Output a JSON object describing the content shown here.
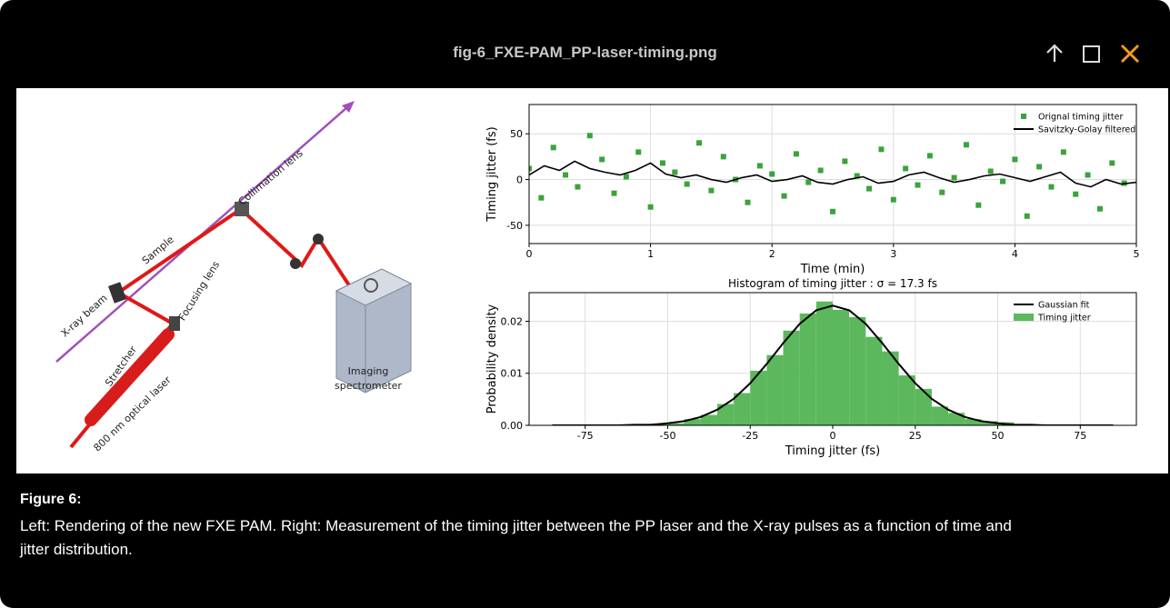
{
  "header": {
    "title": "fig-6_FXE-PAM_PP-laser-timing.png"
  },
  "diagram": {
    "labels": [
      "Collimation lens",
      "Sample",
      "Focusing lens",
      "X-ray beam",
      "Imaging",
      "spectrometer",
      "Stretcher",
      "800 nm optical laser"
    ]
  },
  "charts": [
    {
      "type": "scatter",
      "xlabel": "Time (min)",
      "ylabel": "Timing jitter (fs)",
      "xlim": [
        0,
        5
      ],
      "ylim": [
        -70,
        82
      ],
      "xticks": [
        0,
        1,
        2,
        3,
        4,
        5
      ],
      "yticks": [
        -50,
        0,
        50
      ],
      "grid": true,
      "legend": "upper-right",
      "series": [
        {
          "name": "Orignal timing jitter",
          "type": "scatter",
          "color": "#3aa33a",
          "x": [
            0,
            0.1,
            0.2,
            0.3,
            0.4,
            0.5,
            0.6,
            0.7,
            0.8,
            0.9,
            1,
            1.1,
            1.2,
            1.3,
            1.4,
            1.5,
            1.6,
            1.7,
            1.8,
            1.9,
            2,
            2.1,
            2.2,
            2.3,
            2.4,
            2.5,
            2.6,
            2.7,
            2.8,
            2.9,
            3,
            3.1,
            3.2,
            3.3,
            3.4,
            3.5,
            3.6,
            3.7,
            3.8,
            3.9,
            4,
            4.1,
            4.2,
            4.3,
            4.4,
            4.5,
            4.6,
            4.7,
            4.8,
            4.9
          ],
          "values": [
            12,
            -20,
            35,
            5,
            -8,
            48,
            22,
            -15,
            3,
            30,
            -30,
            18,
            8,
            -5,
            40,
            -12,
            25,
            0,
            -25,
            15,
            6,
            -18,
            28,
            -3,
            10,
            -35,
            20,
            4,
            -10,
            33,
            -22,
            12,
            -6,
            26,
            -14,
            2,
            38,
            -28,
            9,
            -2,
            22,
            -40,
            14,
            -8,
            30,
            -16,
            5,
            -32,
            18,
            -4
          ]
        },
        {
          "name": "Savitzky-Golay filtered",
          "type": "line",
          "color": "#000000",
          "x": [
            0,
            0.125,
            0.25,
            0.375,
            0.5,
            0.625,
            0.75,
            0.875,
            1,
            1.125,
            1.25,
            1.375,
            1.5,
            1.625,
            1.75,
            1.875,
            2,
            2.125,
            2.25,
            2.375,
            2.5,
            2.625,
            2.75,
            2.875,
            3,
            3.125,
            3.25,
            3.375,
            3.5,
            3.625,
            3.75,
            3.875,
            4,
            4.125,
            4.25,
            4.375,
            4.5,
            4.625,
            4.75,
            4.875,
            5
          ],
          "values": [
            5,
            15,
            10,
            20,
            12,
            8,
            5,
            10,
            18,
            6,
            2,
            5,
            0,
            -3,
            2,
            5,
            -2,
            0,
            4,
            -3,
            -5,
            0,
            3,
            -4,
            -2,
            5,
            8,
            2,
            -3,
            0,
            4,
            6,
            2,
            -2,
            3,
            8,
            -4,
            -8,
            0,
            -5,
            -3
          ]
        }
      ]
    },
    {
      "type": "histogram",
      "title": "Histogram of timing jitter : σ = 17.3 fs",
      "xlabel": "Timing jitter (fs)",
      "ylabel": "Probability density",
      "xlim": [
        -92,
        92
      ],
      "ylim": [
        0,
        0.0255
      ],
      "xticks": [
        -75,
        -50,
        -25,
        0,
        25,
        50,
        75
      ],
      "yticks": [
        {
          "value": 0,
          "label": "0.00"
        },
        {
          "value": 0.01,
          "label": "0.01"
        },
        {
          "value": 0.02,
          "label": "0.02"
        }
      ],
      "grid": true,
      "legend": "upper-right",
      "series": [
        {
          "name": "Gaussian fit",
          "type": "line",
          "color": "#000000",
          "x": [
            -85,
            -80,
            -75,
            -70,
            -65,
            -60,
            -55,
            -50,
            -45,
            -40,
            -35,
            -30,
            -25,
            -20,
            -15,
            -10,
            -5,
            0,
            5,
            10,
            15,
            20,
            25,
            30,
            35,
            40,
            45,
            50,
            55,
            60,
            65,
            70,
            75,
            80,
            85
          ],
          "values": [
            0,
            0,
            0,
            0,
            0,
            0.0001,
            0.0001,
            0.0004,
            0.0008,
            0.0016,
            0.003,
            0.0051,
            0.0081,
            0.0118,
            0.0158,
            0.0195,
            0.0221,
            0.023,
            0.0221,
            0.0195,
            0.0158,
            0.0118,
            0.0081,
            0.0051,
            0.003,
            0.0016,
            0.0008,
            0.0004,
            0.0001,
            0.0001,
            0,
            0,
            0,
            0,
            0
          ]
        },
        {
          "name": "Timing jitter",
          "type": "histogram",
          "color": "#5cb85c",
          "bins": [
            -60,
            -55,
            -50,
            -45,
            -40,
            -35,
            -30,
            -25,
            -20,
            -15,
            -10,
            -5,
            0,
            5,
            10,
            15,
            20,
            25,
            30,
            35,
            40,
            45,
            50,
            55,
            60
          ],
          "values": [
            0.0001,
            0.0003,
            0.0004,
            0.0012,
            0.002,
            0.0041,
            0.0062,
            0.0105,
            0.0135,
            0.0182,
            0.0215,
            0.0238,
            0.0222,
            0.0208,
            0.017,
            0.0142,
            0.0096,
            0.007,
            0.0036,
            0.0024,
            0.0012,
            0.0008,
            0.0006,
            0.0001
          ]
        }
      ]
    }
  ],
  "caption": {
    "title": "Figure 6:",
    "text": "Left: Rendering of the new FXE PAM. Right: Measurement of the timing jitter between the PP laser and the X-ray pulses as a function of time and jitter distribution."
  }
}
